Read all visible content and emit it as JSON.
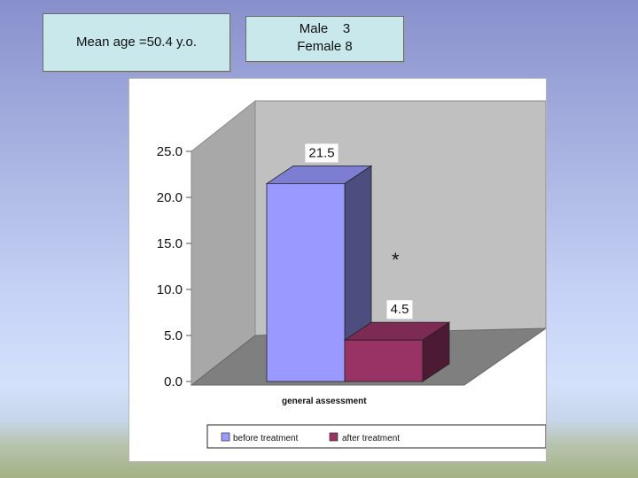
{
  "info": {
    "mean_age": "Mean age =50.4 y.o.",
    "male_line": "Male    3",
    "female_line": "Female 8"
  },
  "chart_data": {
    "type": "bar",
    "style": "3d",
    "categories": [
      "general assessment"
    ],
    "series": [
      {
        "name": "before treatment",
        "values": [
          21.5
        ],
        "color": "#9999ff",
        "label": "21.5"
      },
      {
        "name": "after treatment",
        "values": [
          4.5
        ],
        "color": "#993366",
        "label": "4.5"
      }
    ],
    "yticks": [
      "0.0",
      "5.0",
      "10.0",
      "15.0",
      "20.0",
      "25.0"
    ],
    "ylim": [
      0,
      25
    ],
    "grid": false,
    "annotation": "*",
    "legend_position": "bottom"
  }
}
